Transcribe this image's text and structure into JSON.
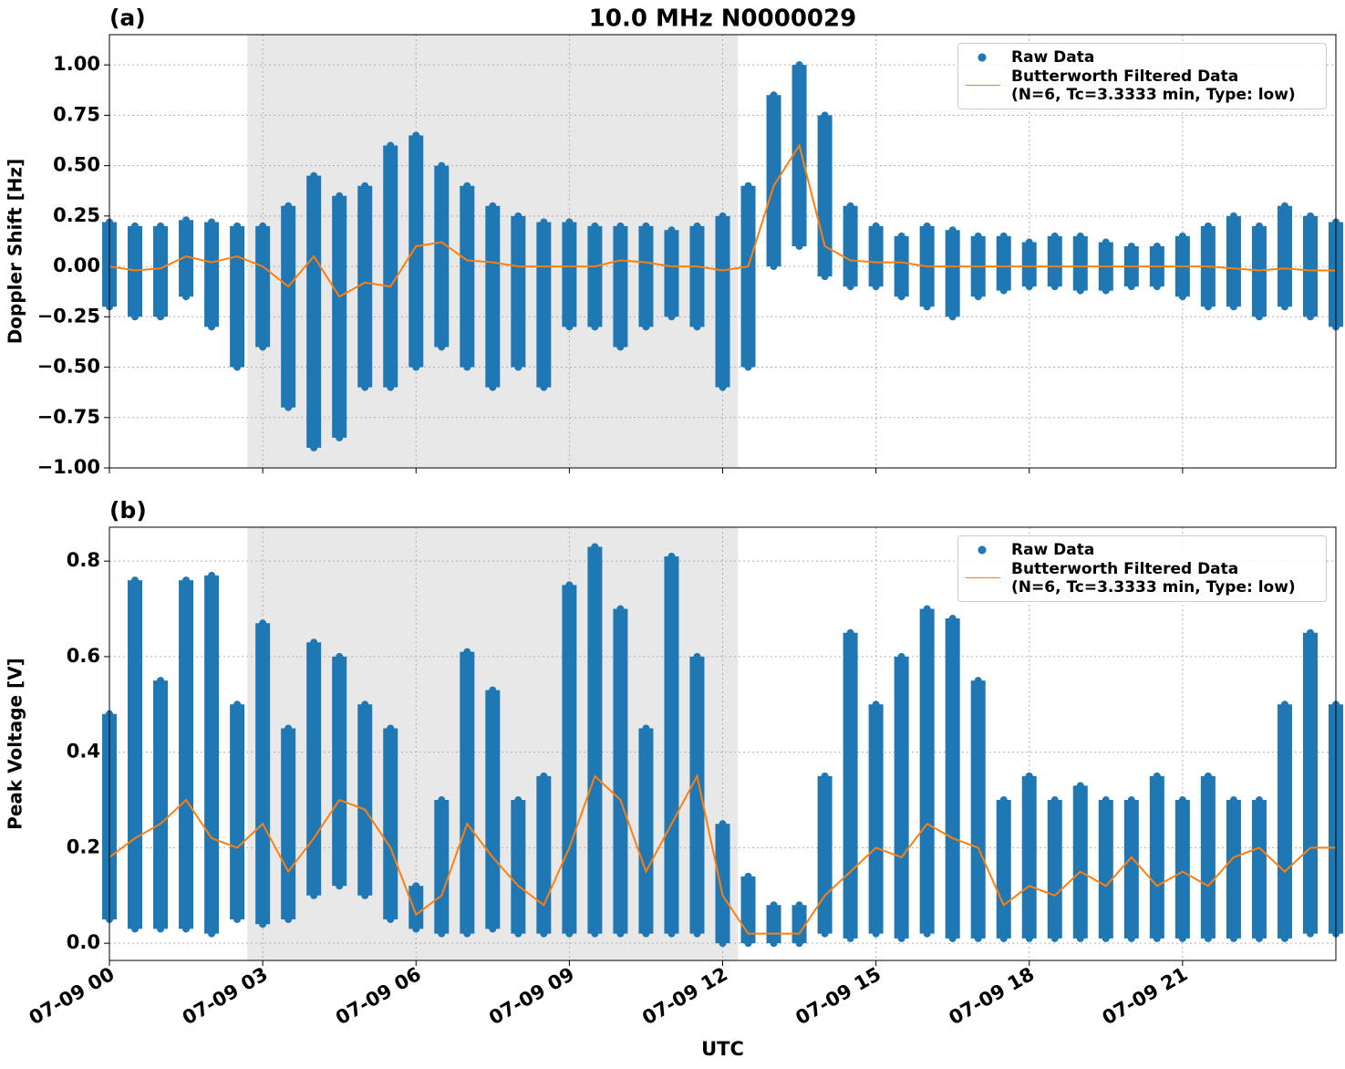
{
  "chart_data": [
    {
      "type": "line",
      "panel_label": "(a)",
      "title": "10.0 MHz N0000029",
      "ylabel": "Doppler Shift [Hz]",
      "xlim": [
        0,
        24
      ],
      "ylim": [
        -1.0,
        1.15
      ],
      "shade": [
        2.7,
        12.3
      ],
      "grid": true,
      "legend": "upper right",
      "xticks": [
        {
          "value": 0,
          "label": "07-09 00"
        },
        {
          "value": 3,
          "label": "07-09 03"
        },
        {
          "value": 6,
          "label": "07-09 06"
        },
        {
          "value": 9,
          "label": "07-09 09"
        },
        {
          "value": 12,
          "label": "07-09 12"
        },
        {
          "value": 15,
          "label": "07-09 15"
        },
        {
          "value": 18,
          "label": "07-09 18"
        },
        {
          "value": 21,
          "label": "07-09 21"
        }
      ],
      "yticks": [
        {
          "value": -1.0,
          "label": "−1.00"
        },
        {
          "value": -0.75,
          "label": "−0.75"
        },
        {
          "value": -0.5,
          "label": "−0.50"
        },
        {
          "value": -0.25,
          "label": "−0.25"
        },
        {
          "value": 0,
          "label": "0.00"
        },
        0.25,
        {
          "value": 0.5,
          "label": "0.50"
        },
        0.75,
        {
          "value": 1.0,
          "label": "1.00"
        }
      ],
      "x": [
        0,
        0.5,
        1,
        1.5,
        2,
        2.5,
        3,
        3.5,
        4,
        4.5,
        5,
        5.5,
        6,
        6.5,
        7,
        7.5,
        8,
        8.5,
        9,
        9.5,
        10,
        10.5,
        11,
        11.5,
        12,
        12.5,
        13,
        13.5,
        14,
        14.5,
        15,
        15.5,
        16,
        16.5,
        17,
        17.5,
        18,
        18.5,
        19,
        19.5,
        20,
        20.5,
        21,
        21.5,
        22,
        22.5,
        23,
        23.5,
        24
      ],
      "series": [
        {
          "name": "Raw Data",
          "type": "scatter",
          "color": "#1f77b4",
          "values": [
            [
              0.22,
              -0.2
            ],
            [
              0.2,
              -0.25
            ],
            [
              0.2,
              -0.25
            ],
            [
              0.23,
              -0.15
            ],
            [
              0.22,
              -0.3
            ],
            [
              0.2,
              -0.5
            ],
            [
              0.2,
              -0.4
            ],
            [
              0.3,
              -0.7
            ],
            [
              0.45,
              -0.9
            ],
            [
              0.35,
              -0.85
            ],
            [
              0.4,
              -0.6
            ],
            [
              0.6,
              -0.6
            ],
            [
              0.65,
              -0.5
            ],
            [
              0.5,
              -0.4
            ],
            [
              0.4,
              -0.5
            ],
            [
              0.3,
              -0.6
            ],
            [
              0.25,
              -0.5
            ],
            [
              0.22,
              -0.6
            ],
            [
              0.22,
              -0.3
            ],
            [
              0.2,
              -0.3
            ],
            [
              0.2,
              -0.4
            ],
            [
              0.2,
              -0.3
            ],
            [
              0.18,
              -0.25
            ],
            [
              0.2,
              -0.3
            ],
            [
              0.25,
              -0.6
            ],
            [
              0.4,
              -0.5
            ],
            [
              0.85,
              0.0
            ],
            [
              1.0,
              0.1
            ],
            [
              0.75,
              -0.05
            ],
            [
              0.3,
              -0.1
            ],
            [
              0.2,
              -0.1
            ],
            [
              0.15,
              -0.15
            ],
            [
              0.2,
              -0.2
            ],
            [
              0.18,
              -0.25
            ],
            [
              0.15,
              -0.15
            ],
            [
              0.15,
              -0.12
            ],
            [
              0.12,
              -0.1
            ],
            [
              0.15,
              -0.1
            ],
            [
              0.15,
              -0.12
            ],
            [
              0.12,
              -0.12
            ],
            [
              0.1,
              -0.1
            ],
            [
              0.1,
              -0.1
            ],
            [
              0.15,
              -0.15
            ],
            [
              0.2,
              -0.2
            ],
            [
              0.25,
              -0.2
            ],
            [
              0.2,
              -0.25
            ],
            [
              0.3,
              -0.2
            ],
            [
              0.25,
              -0.25
            ],
            [
              0.22,
              -0.3
            ]
          ]
        },
        {
          "name": "Butterworth Filtered Data\n(N=6, Tc=3.3333 min, Type: low)",
          "type": "line",
          "color": "#ff7f0e",
          "values": [
            0.0,
            -0.02,
            -0.01,
            0.05,
            0.02,
            0.05,
            0.0,
            -0.1,
            0.05,
            -0.15,
            -0.08,
            -0.1,
            0.1,
            0.12,
            0.03,
            0.02,
            0.0,
            0.0,
            0.0,
            0.0,
            0.03,
            0.02,
            0.0,
            0.0,
            -0.02,
            0.0,
            0.4,
            0.6,
            0.1,
            0.03,
            0.02,
            0.02,
            0.0,
            0.0,
            0.0,
            0.0,
            0.0,
            0.0,
            0.0,
            0.0,
            0.0,
            0.0,
            0.0,
            0.0,
            -0.01,
            -0.02,
            -0.01,
            -0.02,
            -0.02
          ]
        }
      ]
    },
    {
      "type": "line",
      "panel_label": "(b)",
      "ylabel": "Peak Voltage [V]",
      "xlabel": "UTC",
      "xlim": [
        0,
        24
      ],
      "ylim": [
        -0.036,
        0.871
      ],
      "shade": [
        2.7,
        12.3
      ],
      "grid": true,
      "legend": "upper right",
      "xticks": [
        {
          "value": 0,
          "label": "07-09 00"
        },
        {
          "value": 3,
          "label": "07-09 03"
        },
        {
          "value": 6,
          "label": "07-09 06"
        },
        {
          "value": 9,
          "label": "07-09 09"
        },
        {
          "value": 12,
          "label": "07-09 12"
        },
        {
          "value": 15,
          "label": "07-09 15"
        },
        {
          "value": 18,
          "label": "07-09 18"
        },
        {
          "value": 21,
          "label": "07-09 21"
        }
      ],
      "yticks": [
        {
          "value": 0,
          "label": "0.0"
        },
        0.2,
        0.4,
        0.6,
        0.8
      ],
      "x": [
        0,
        0.5,
        1,
        1.5,
        2,
        2.5,
        3,
        3.5,
        4,
        4.5,
        5,
        5.5,
        6,
        6.5,
        7,
        7.5,
        8,
        8.5,
        9,
        9.5,
        10,
        10.5,
        11,
        11.5,
        12,
        12.5,
        13,
        13.5,
        14,
        14.5,
        15,
        15.5,
        16,
        16.5,
        17,
        17.5,
        18,
        18.5,
        19,
        19.5,
        20,
        20.5,
        21,
        21.5,
        22,
        22.5,
        23,
        23.5,
        24
      ],
      "series": [
        {
          "name": "Raw Data",
          "type": "scatter",
          "color": "#1f77b4",
          "values": [
            [
              0.48,
              0.05
            ],
            [
              0.76,
              0.03
            ],
            [
              0.55,
              0.03
            ],
            [
              0.76,
              0.03
            ],
            [
              0.77,
              0.02
            ],
            [
              0.5,
              0.05
            ],
            [
              0.67,
              0.04
            ],
            [
              0.45,
              0.05
            ],
            [
              0.63,
              0.1
            ],
            [
              0.6,
              0.12
            ],
            [
              0.5,
              0.1
            ],
            [
              0.45,
              0.05
            ],
            [
              0.12,
              0.03
            ],
            [
              0.3,
              0.02
            ],
            [
              0.61,
              0.02
            ],
            [
              0.53,
              0.03
            ],
            [
              0.3,
              0.02
            ],
            [
              0.35,
              0.02
            ],
            [
              0.75,
              0.02
            ],
            [
              0.83,
              0.02
            ],
            [
              0.7,
              0.02
            ],
            [
              0.45,
              0.02
            ],
            [
              0.81,
              0.02
            ],
            [
              0.6,
              0.02
            ],
            [
              0.25,
              0.0
            ],
            [
              0.14,
              0.0
            ],
            [
              0.08,
              0.0
            ],
            [
              0.08,
              0.0
            ],
            [
              0.35,
              0.02
            ],
            [
              0.65,
              0.01
            ],
            [
              0.5,
              0.02
            ],
            [
              0.6,
              0.01
            ],
            [
              0.7,
              0.02
            ],
            [
              0.68,
              0.01
            ],
            [
              0.55,
              0.01
            ],
            [
              0.3,
              0.01
            ],
            [
              0.35,
              0.01
            ],
            [
              0.3,
              0.01
            ],
            [
              0.33,
              0.01
            ],
            [
              0.3,
              0.01
            ],
            [
              0.3,
              0.01
            ],
            [
              0.35,
              0.01
            ],
            [
              0.3,
              0.01
            ],
            [
              0.35,
              0.01
            ],
            [
              0.3,
              0.01
            ],
            [
              0.3,
              0.01
            ],
            [
              0.5,
              0.01
            ],
            [
              0.65,
              0.02
            ],
            [
              0.5,
              0.02
            ]
          ]
        },
        {
          "name": "Butterworth Filtered Data\n(N=6, Tc=3.3333 min, Type: low)",
          "type": "line",
          "color": "#ff7f0e",
          "values": [
            0.18,
            0.22,
            0.25,
            0.3,
            0.22,
            0.2,
            0.25,
            0.15,
            0.22,
            0.3,
            0.28,
            0.2,
            0.06,
            0.1,
            0.25,
            0.18,
            0.12,
            0.08,
            0.2,
            0.35,
            0.3,
            0.15,
            0.25,
            0.35,
            0.1,
            0.02,
            0.02,
            0.02,
            0.1,
            0.15,
            0.2,
            0.18,
            0.25,
            0.22,
            0.2,
            0.08,
            0.12,
            0.1,
            0.15,
            0.12,
            0.18,
            0.12,
            0.15,
            0.12,
            0.18,
            0.2,
            0.15,
            0.2,
            0.2
          ]
        }
      ]
    }
  ]
}
